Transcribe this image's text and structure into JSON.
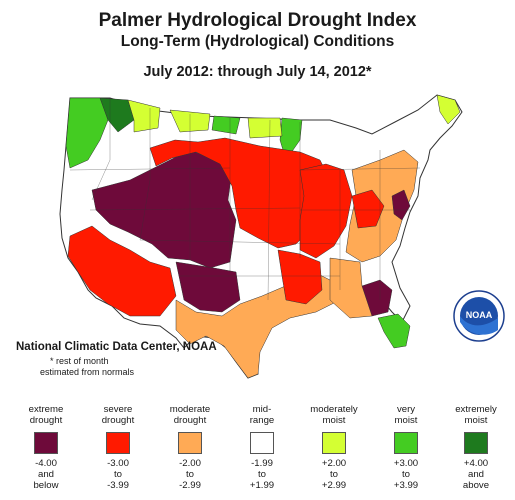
{
  "title": "Palmer Hydrological Drought Index",
  "subtitle": "Long-Term (Hydrological) Conditions",
  "period": "July 2012: through July 14, 2012*",
  "credit": "National Climatic Data Center, NOAA",
  "note_line1": "* rest of month",
  "note_line2": "estimated from normals",
  "logo_text": "NOAA",
  "legend": [
    {
      "cap1": "extreme",
      "cap2": "drought",
      "r1": "-4.00",
      "r2": "and",
      "r3": "below",
      "color": "#6e0a3a"
    },
    {
      "cap1": "severe",
      "cap2": "drought",
      "r1": "-3.00",
      "r2": "to",
      "r3": "-3.99",
      "color": "#ff1a00"
    },
    {
      "cap1": "moderate",
      "cap2": "drought",
      "r1": "-2.00",
      "r2": "to",
      "r3": "-2.99",
      "color": "#ffaa55"
    },
    {
      "cap1": "mid-",
      "cap2": "range",
      "r1": "-1.99",
      "r2": "to",
      "r3": "+1.99",
      "color": "#ffffff"
    },
    {
      "cap1": "moderately",
      "cap2": "moist",
      "r1": "+2.00",
      "r2": "to",
      "r3": "+2.99",
      "color": "#d4ff33"
    },
    {
      "cap1": "very",
      "cap2": "moist",
      "r1": "+3.00",
      "r2": "to",
      "r3": "+3.99",
      "color": "#44cc22"
    },
    {
      "cap1": "extremely",
      "cap2": "moist",
      "r1": "+4.00",
      "r2": "and",
      "r3": "above",
      "color": "#1e7a1e"
    }
  ]
}
